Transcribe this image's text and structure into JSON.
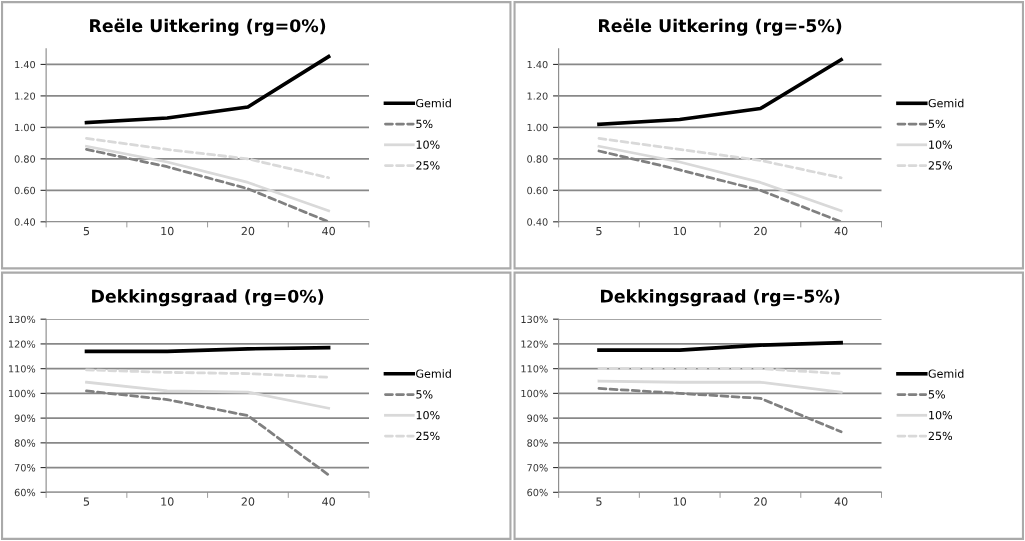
{
  "chart_data": [
    {
      "type": "line",
      "title": "Reële Uitkering (rg=0%)",
      "categories": [
        "5",
        "10",
        "20",
        "40"
      ],
      "ylim": [
        0.4,
        1.5
      ],
      "yticks": [
        {
          "value": 0.4,
          "label": "0.40"
        },
        {
          "value": 0.6,
          "label": "0.60"
        },
        {
          "value": 0.8,
          "label": "0.80"
        },
        {
          "value": 1.0,
          "label": "1.00"
        },
        {
          "value": 1.2,
          "label": "1.20"
        },
        {
          "value": 1.4,
          "label": "1.40"
        }
      ],
      "grid": "y",
      "legend": "right",
      "series": [
        {
          "name": "Gemid",
          "color": "#000000",
          "line_style": "solid",
          "values": [
            1.03,
            1.06,
            1.13,
            1.45
          ]
        },
        {
          "name": "5%",
          "color": "#808080",
          "line_style": "dashed",
          "values": [
            0.86,
            0.75,
            0.61,
            0.4
          ]
        },
        {
          "name": "10%",
          "color": "#d9d9d9",
          "line_style": "solid",
          "values": [
            0.88,
            0.78,
            0.65,
            0.47
          ]
        },
        {
          "name": "25%",
          "color": "#d9d9d9",
          "line_style": "dashed",
          "values": [
            0.93,
            0.86,
            0.8,
            0.68
          ]
        }
      ]
    },
    {
      "type": "line",
      "title": "Reële Uitkering (rg=-5%)",
      "categories": [
        "5",
        "10",
        "20",
        "40"
      ],
      "ylim": [
        0.4,
        1.5
      ],
      "yticks": [
        {
          "value": 0.4,
          "label": "0.40"
        },
        {
          "value": 0.6,
          "label": "0.60"
        },
        {
          "value": 0.8,
          "label": "0.80"
        },
        {
          "value": 1.0,
          "label": "1.00"
        },
        {
          "value": 1.2,
          "label": "1.20"
        },
        {
          "value": 1.4,
          "label": "1.40"
        }
      ],
      "grid": "y",
      "legend": "right",
      "series": [
        {
          "name": "Gemid",
          "color": "#000000",
          "line_style": "solid",
          "values": [
            1.02,
            1.05,
            1.12,
            1.43
          ]
        },
        {
          "name": "5%",
          "color": "#808080",
          "line_style": "dashed",
          "values": [
            0.85,
            0.73,
            0.6,
            0.4
          ]
        },
        {
          "name": "10%",
          "color": "#d9d9d9",
          "line_style": "solid",
          "values": [
            0.88,
            0.78,
            0.65,
            0.47
          ]
        },
        {
          "name": "25%",
          "color": "#d9d9d9",
          "line_style": "dashed",
          "values": [
            0.93,
            0.86,
            0.79,
            0.68
          ]
        }
      ]
    },
    {
      "type": "line",
      "title": "Dekkingsgraad (rg=0%)",
      "categories": [
        "5",
        "10",
        "20",
        "40"
      ],
      "ylim": [
        60,
        130
      ],
      "yticks": [
        {
          "value": 60,
          "label": "60%"
        },
        {
          "value": 70,
          "label": "70%"
        },
        {
          "value": 80,
          "label": "80%"
        },
        {
          "value": 90,
          "label": "90%"
        },
        {
          "value": 100,
          "label": "100%"
        },
        {
          "value": 110,
          "label": "110%"
        },
        {
          "value": 120,
          "label": "120%"
        },
        {
          "value": 130,
          "label": "130%"
        }
      ],
      "grid": "y",
      "legend": "right",
      "series": [
        {
          "name": "Gemid",
          "color": "#000000",
          "line_style": "solid",
          "values": [
            117,
            117,
            118,
            118.5
          ]
        },
        {
          "name": "5%",
          "color": "#808080",
          "line_style": "dashed",
          "values": [
            101,
            97.5,
            91,
            67
          ]
        },
        {
          "name": "10%",
          "color": "#d9d9d9",
          "line_style": "solid",
          "values": [
            104.5,
            101,
            100.5,
            94
          ]
        },
        {
          "name": "25%",
          "color": "#d9d9d9",
          "line_style": "dashed",
          "values": [
            109.5,
            108.5,
            108,
            106.5
          ]
        }
      ]
    },
    {
      "type": "line",
      "title": "Dekkingsgraad (rg=-5%)",
      "categories": [
        "5",
        "10",
        "20",
        "40"
      ],
      "ylim": [
        60,
        130
      ],
      "yticks": [
        {
          "value": 60,
          "label": "60%"
        },
        {
          "value": 70,
          "label": "70%"
        },
        {
          "value": 80,
          "label": "80%"
        },
        {
          "value": 90,
          "label": "90%"
        },
        {
          "value": 100,
          "label": "100%"
        },
        {
          "value": 110,
          "label": "110%"
        },
        {
          "value": 120,
          "label": "120%"
        },
        {
          "value": 130,
          "label": "130%"
        }
      ],
      "grid": "y",
      "legend": "right",
      "series": [
        {
          "name": "Gemid",
          "color": "#000000",
          "line_style": "solid",
          "values": [
            117.5,
            117.5,
            119.5,
            120.5
          ]
        },
        {
          "name": "5%",
          "color": "#808080",
          "line_style": "dashed",
          "values": [
            102,
            100,
            98,
            84.5
          ]
        },
        {
          "name": "10%",
          "color": "#d9d9d9",
          "line_style": "solid",
          "values": [
            105,
            104.5,
            104.5,
            100.5
          ]
        },
        {
          "name": "25%",
          "color": "#d9d9d9",
          "line_style": "dashed",
          "values": [
            110,
            110,
            110,
            108
          ]
        }
      ]
    }
  ]
}
